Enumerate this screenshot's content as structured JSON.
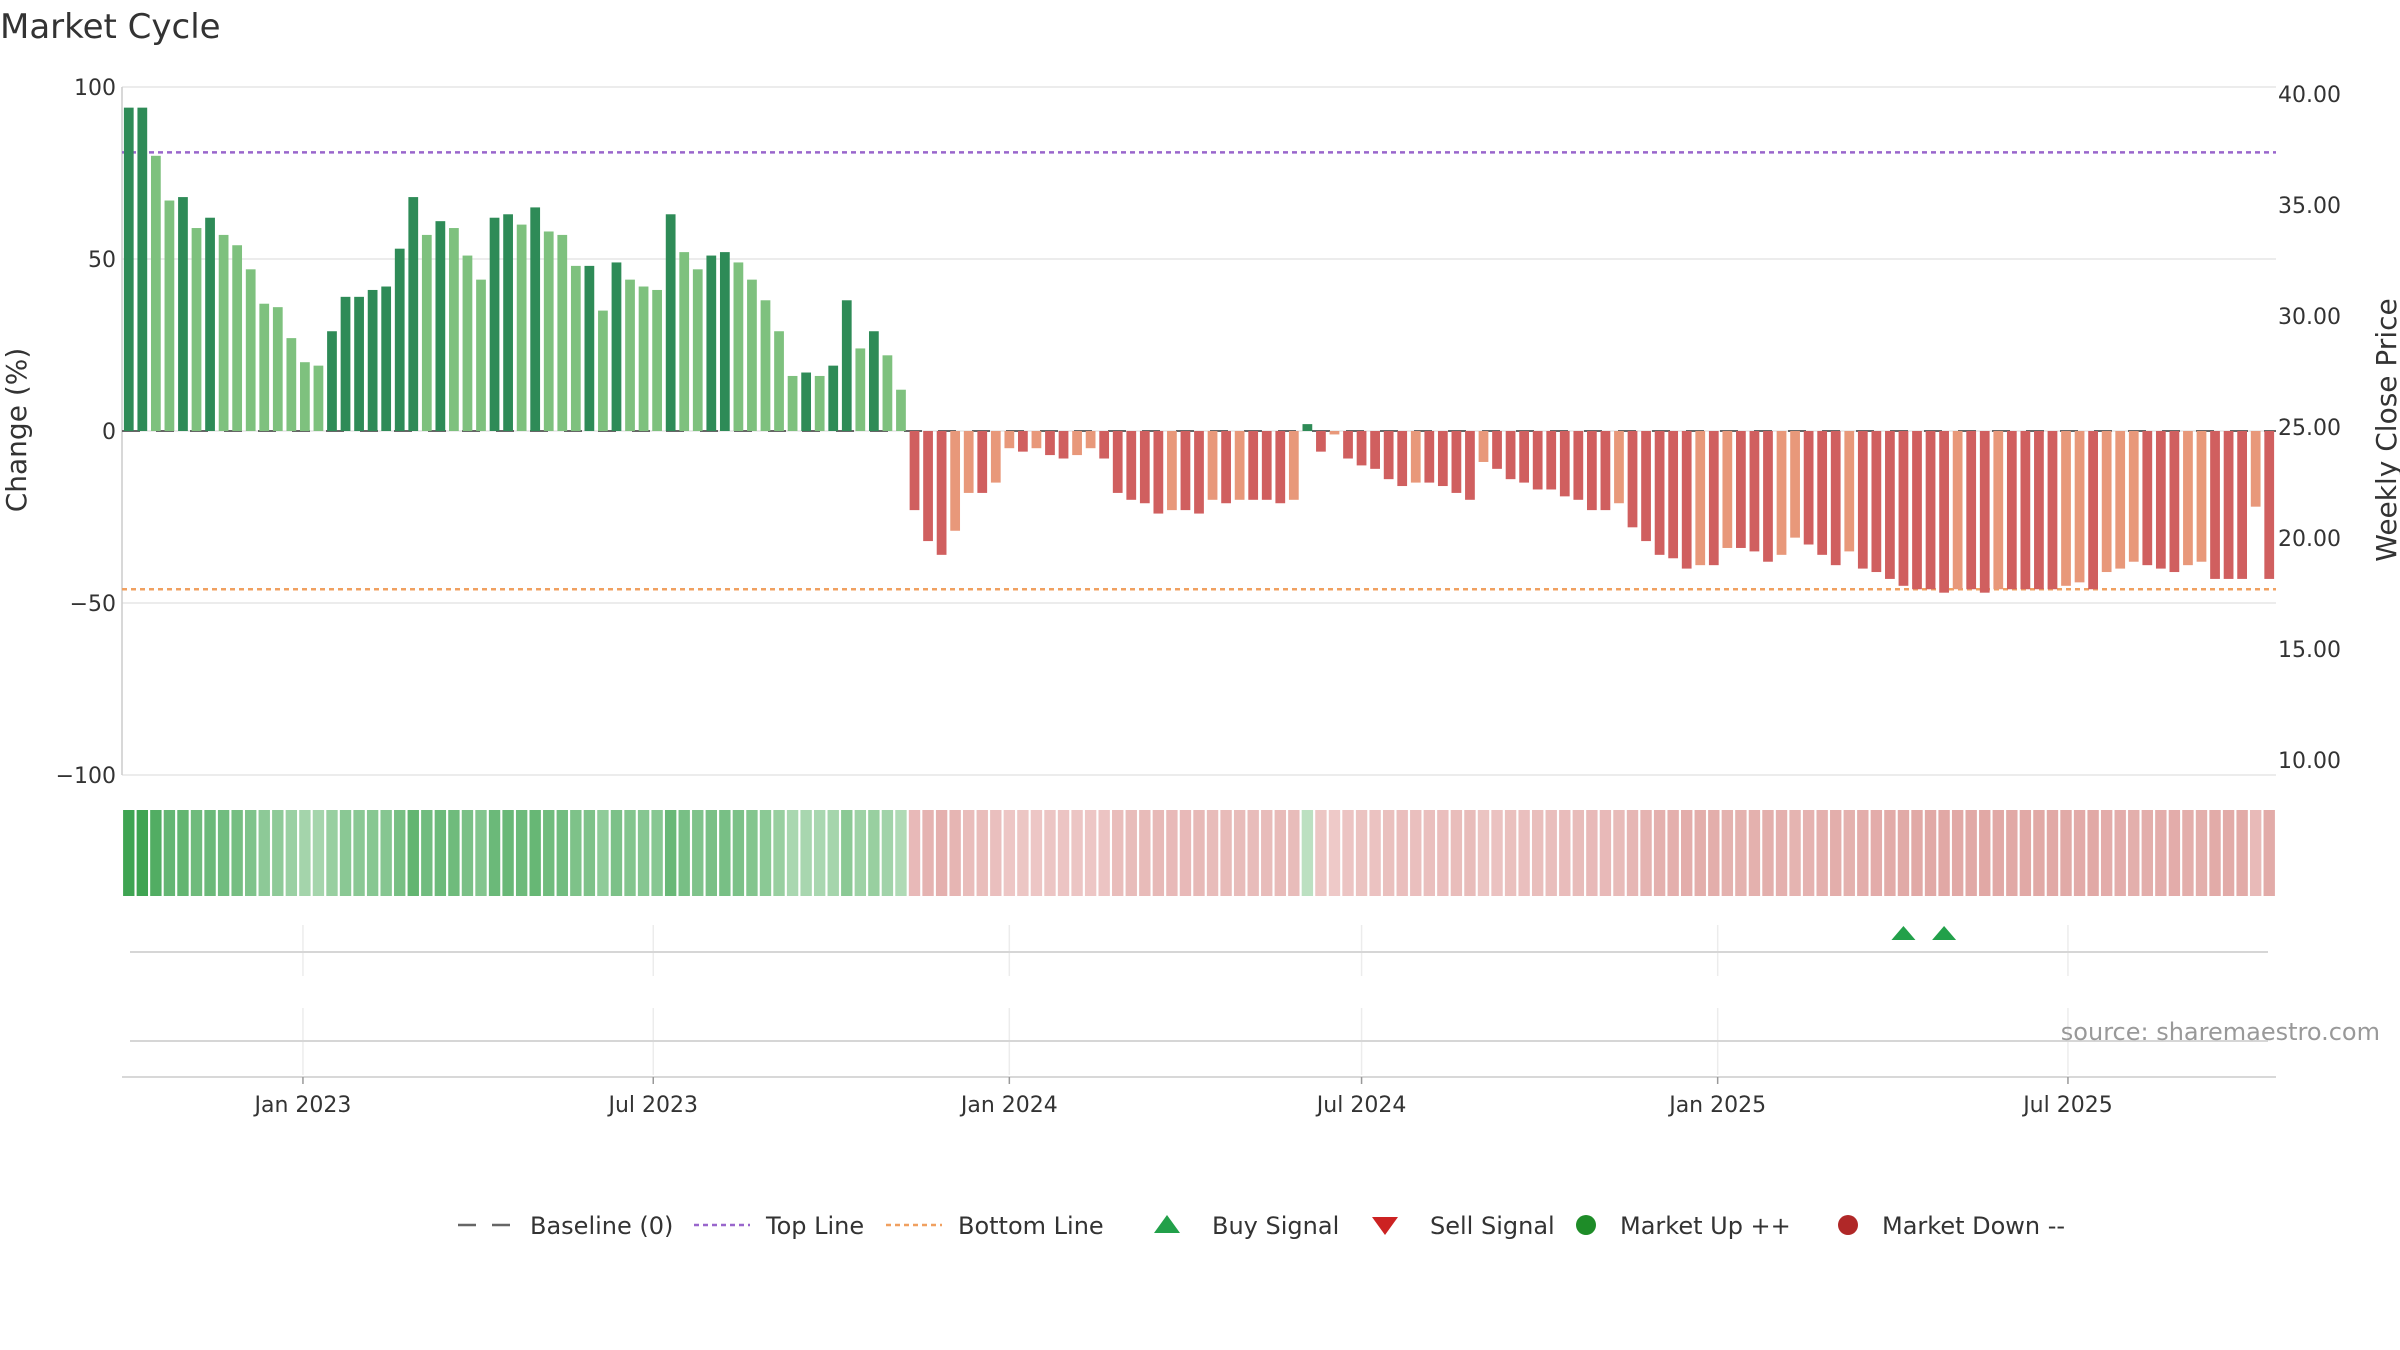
{
  "chart_data": {
    "type": "bar",
    "title": "Market Cycle",
    "ylabel": "Change (%)",
    "y2label": "Weekly Close Price",
    "ylim": [
      -100,
      100
    ],
    "y2lim": [
      10,
      40
    ],
    "yticks": [
      "100",
      "50",
      "0",
      "−50",
      "−100"
    ],
    "y2ticks": [
      "40.00",
      "35.00",
      "30.00",
      "25.00",
      "20.00",
      "15.00",
      "10.00"
    ],
    "x_start": "2022-10-03",
    "week_days": 7,
    "xticks": [
      {
        "date": "2023-01-01",
        "label": "Jan 2023"
      },
      {
        "date": "2023-07-01",
        "label": "Jul 2023"
      },
      {
        "date": "2024-01-01",
        "label": "Jan 2024"
      },
      {
        "date": "2024-07-01",
        "label": "Jul 2024"
      },
      {
        "date": "2025-01-01",
        "label": "Jan 2025"
      },
      {
        "date": "2025-07-01",
        "label": "Jul 2025"
      }
    ],
    "top_line": 81,
    "bottom_line": -46,
    "baseline": 0,
    "values": [
      94,
      94,
      80,
      67,
      68,
      59,
      62,
      57,
      54,
      47,
      37,
      36,
      27,
      20,
      19,
      29,
      39,
      39,
      41,
      42,
      53,
      68,
      57,
      61,
      59,
      51,
      44,
      62,
      63,
      60,
      65,
      58,
      57,
      48,
      48,
      35,
      49,
      44,
      42,
      41,
      63,
      52,
      47,
      51,
      52,
      49,
      44,
      38,
      29,
      16,
      17,
      16,
      19,
      38,
      24,
      29,
      22,
      12,
      -23,
      -32,
      -36,
      -29,
      -18,
      -18,
      -15,
      -5,
      -6,
      -5,
      -7,
      -8,
      -7,
      -5,
      -8,
      -18,
      -20,
      -21,
      -24,
      -23,
      -23,
      -24,
      -20,
      -21,
      -20,
      -20,
      -20,
      -21,
      -20,
      2,
      -6,
      -1,
      -8,
      -10,
      -11,
      -14,
      -16,
      -15,
      -15,
      -16,
      -18,
      -20,
      -9,
      -11,
      -14,
      -15,
      -17,
      -17,
      -19,
      -20,
      -23,
      -23,
      -21,
      -28,
      -32,
      -36,
      -37,
      -40,
      -39,
      -39,
      -34,
      -34,
      -35,
      -38,
      -36,
      -31,
      -33,
      -36,
      -39,
      -35,
      -40,
      -41,
      -43,
      -45,
      -46,
      -46,
      -47,
      -46,
      -46,
      -47,
      -46,
      -46,
      -46,
      -46,
      -46,
      -45,
      -44,
      -46,
      -41,
      -40,
      -38,
      -39,
      -40,
      -41,
      -39,
      -38,
      -43,
      -43,
      -43,
      -22,
      -43
    ],
    "buy_signals": [
      "2025-04-07",
      "2025-04-28"
    ],
    "sell_signals": [],
    "colors": {
      "up_strong": "#2e8b57",
      "up_light": "#7ec17e",
      "down_strong": "#d05f5f",
      "down_light": "#e8987a",
      "top_line": "#9966cc",
      "bottom_line": "#f0a060",
      "baseline": "#666666",
      "buy": "#22a04a",
      "sell": "#cc2222",
      "market_up": "#1e8c28",
      "market_down": "#b02828"
    },
    "legend": [
      {
        "label": "Baseline (0)",
        "kind": "dash",
        "color": "#666666"
      },
      {
        "label": "Top Line",
        "kind": "dot",
        "color": "#9966cc"
      },
      {
        "label": "Bottom Line",
        "kind": "dot",
        "color": "#f0a060"
      },
      {
        "label": "Buy Signal",
        "kind": "tri-up",
        "color": "#22a04a"
      },
      {
        "label": "Sell Signal",
        "kind": "tri-down",
        "color": "#cc2222"
      },
      {
        "label": "Market Up ++",
        "kind": "circle",
        "color": "#1e8c28"
      },
      {
        "label": "Market Down --",
        "kind": "circle",
        "color": "#b02828"
      }
    ],
    "source": "source: sharemaestro.com"
  }
}
